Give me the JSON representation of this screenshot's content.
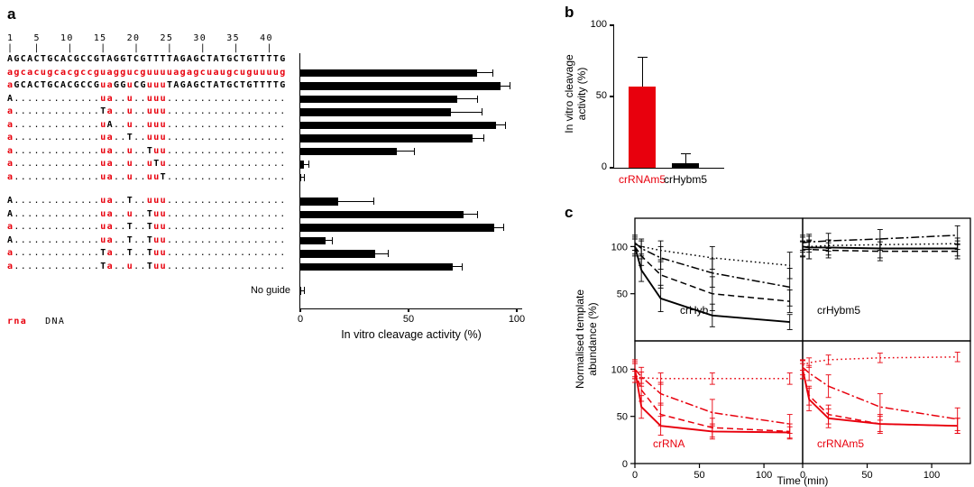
{
  "panel_labels": {
    "a": "a",
    "b": "b",
    "c": "c"
  },
  "colors": {
    "red": "#e8000d",
    "black": "#000000"
  },
  "chart_data": [
    {
      "panel": "a",
      "type": "bar",
      "orientation": "horizontal",
      "xlabel": "In vitro cleavage  activity (%)",
      "x_ticks": [
        0,
        50,
        100
      ],
      "xlim": [
        0,
        100
      ],
      "ruler_numbers": "1   5   10   15   20   25   30   35   40",
      "ruler_ticks": "|   |    |    |    |    |    |    |    |",
      "legend_rna": "rna",
      "legend_dna": "DNA",
      "no_guide_label": "No guide",
      "no_guide_bar": {
        "value": 1,
        "err": 1
      },
      "gap_before_rows": [
        10
      ],
      "rows": [
        {
          "segments": [
            [
              "AGCACTGCACGCCGTAGGTCGTTTTAGAGCTATGCTGTTTTG",
              "d"
            ]
          ],
          "bar": null
        },
        {
          "segments": [
            [
              "agcacugcacgccguaggucguuuuagagcuaugcuguuuug",
              "r"
            ]
          ],
          "bar": {
            "value": 82,
            "err": 7
          }
        },
        {
          "segments": [
            [
              "a",
              "r"
            ],
            [
              "GCACTGCACGCCG",
              "d"
            ],
            [
              "ua",
              "r"
            ],
            [
              "GG",
              "d"
            ],
            [
              "u",
              "r"
            ],
            [
              "CG",
              "d"
            ],
            [
              "uuu",
              "r"
            ],
            [
              "TAGAGCTATGCTGTTTTG",
              "d"
            ]
          ],
          "bar": {
            "value": 93,
            "err": 4
          }
        },
        {
          "segments": [
            [
              "A",
              "d"
            ],
            [
              ".............",
              "x"
            ],
            [
              "ua",
              "r"
            ],
            [
              "..",
              "x"
            ],
            [
              "u",
              "r"
            ],
            [
              "..",
              "x"
            ],
            [
              "uuu",
              "r"
            ],
            [
              "..................",
              "x"
            ]
          ],
          "bar": {
            "value": 73,
            "err": 9
          }
        },
        {
          "segments": [
            [
              "a",
              "r"
            ],
            [
              ".............",
              "x"
            ],
            [
              "T",
              "d"
            ],
            [
              "a",
              "r"
            ],
            [
              "..",
              "x"
            ],
            [
              "u",
              "r"
            ],
            [
              "..",
              "x"
            ],
            [
              "uuu",
              "r"
            ],
            [
              "..................",
              "x"
            ]
          ],
          "bar": {
            "value": 70,
            "err": 14
          }
        },
        {
          "segments": [
            [
              "a",
              "r"
            ],
            [
              ".............",
              "x"
            ],
            [
              "u",
              "r"
            ],
            [
              "A",
              "d"
            ],
            [
              "..",
              "x"
            ],
            [
              "u",
              "r"
            ],
            [
              "..",
              "x"
            ],
            [
              "uuu",
              "r"
            ],
            [
              "..................",
              "x"
            ]
          ],
          "bar": {
            "value": 91,
            "err": 4
          }
        },
        {
          "segments": [
            [
              "a",
              "r"
            ],
            [
              ".............",
              "x"
            ],
            [
              "ua",
              "r"
            ],
            [
              "..",
              "x"
            ],
            [
              "T",
              "d"
            ],
            [
              "..",
              "x"
            ],
            [
              "uuu",
              "r"
            ],
            [
              "..................",
              "x"
            ]
          ],
          "bar": {
            "value": 80,
            "err": 5
          }
        },
        {
          "segments": [
            [
              "a",
              "r"
            ],
            [
              ".............",
              "x"
            ],
            [
              "ua",
              "r"
            ],
            [
              "..",
              "x"
            ],
            [
              "u",
              "r"
            ],
            [
              "..",
              "x"
            ],
            [
              "T",
              "d"
            ],
            [
              "uu",
              "r"
            ],
            [
              "..................",
              "x"
            ]
          ],
          "bar": {
            "value": 45,
            "err": 8
          }
        },
        {
          "segments": [
            [
              "a",
              "r"
            ],
            [
              ".............",
              "x"
            ],
            [
              "ua",
              "r"
            ],
            [
              "..",
              "x"
            ],
            [
              "u",
              "r"
            ],
            [
              "..",
              "x"
            ],
            [
              "u",
              "r"
            ],
            [
              "T",
              "d"
            ],
            [
              "u",
              "r"
            ],
            [
              "..................",
              "x"
            ]
          ],
          "bar": {
            "value": 2,
            "err": 2
          }
        },
        {
          "segments": [
            [
              "a",
              "r"
            ],
            [
              ".............",
              "x"
            ],
            [
              "ua",
              "r"
            ],
            [
              "..",
              "x"
            ],
            [
              "u",
              "r"
            ],
            [
              "..",
              "x"
            ],
            [
              "uu",
              "r"
            ],
            [
              "T",
              "d"
            ],
            [
              "..................",
              "x"
            ]
          ],
          "bar": {
            "value": 1,
            "err": 1
          }
        },
        {
          "segments": [
            [
              "A",
              "d"
            ],
            [
              ".............",
              "x"
            ],
            [
              "ua",
              "r"
            ],
            [
              "..",
              "x"
            ],
            [
              "T",
              "d"
            ],
            [
              "..",
              "x"
            ],
            [
              "uuu",
              "r"
            ],
            [
              "..................",
              "x"
            ]
          ],
          "bar": {
            "value": 18,
            "err": 16
          }
        },
        {
          "segments": [
            [
              "A",
              "d"
            ],
            [
              ".............",
              "x"
            ],
            [
              "ua",
              "r"
            ],
            [
              "..",
              "x"
            ],
            [
              "u",
              "r"
            ],
            [
              "..",
              "x"
            ],
            [
              "T",
              "d"
            ],
            [
              "uu",
              "r"
            ],
            [
              "..................",
              "x"
            ]
          ],
          "bar": {
            "value": 76,
            "err": 6
          }
        },
        {
          "segments": [
            [
              "a",
              "r"
            ],
            [
              ".............",
              "x"
            ],
            [
              "ua",
              "r"
            ],
            [
              "..",
              "x"
            ],
            [
              "T",
              "d"
            ],
            [
              "..",
              "x"
            ],
            [
              "T",
              "d"
            ],
            [
              "uu",
              "r"
            ],
            [
              "..................",
              "x"
            ]
          ],
          "bar": {
            "value": 90,
            "err": 4
          }
        },
        {
          "segments": [
            [
              "A",
              "d"
            ],
            [
              ".............",
              "x"
            ],
            [
              "ua",
              "r"
            ],
            [
              "..",
              "x"
            ],
            [
              "T",
              "d"
            ],
            [
              "..",
              "x"
            ],
            [
              "T",
              "d"
            ],
            [
              "uu",
              "r"
            ],
            [
              "..................",
              "x"
            ]
          ],
          "bar": {
            "value": 12,
            "err": 3
          }
        },
        {
          "segments": [
            [
              "a",
              "r"
            ],
            [
              ".............",
              "x"
            ],
            [
              "T",
              "d"
            ],
            [
              "a",
              "r"
            ],
            [
              "..",
              "x"
            ],
            [
              "T",
              "d"
            ],
            [
              "..",
              "x"
            ],
            [
              "T",
              "d"
            ],
            [
              "uu",
              "r"
            ],
            [
              "..................",
              "x"
            ]
          ],
          "bar": {
            "value": 35,
            "err": 6
          }
        },
        {
          "segments": [
            [
              "a",
              "r"
            ],
            [
              ".............",
              "x"
            ],
            [
              "T",
              "d"
            ],
            [
              "a",
              "r"
            ],
            [
              "..",
              "x"
            ],
            [
              "u",
              "r"
            ],
            [
              "..",
              "x"
            ],
            [
              "T",
              "d"
            ],
            [
              "uu",
              "r"
            ],
            [
              "..................",
              "x"
            ]
          ],
          "bar": {
            "value": 71,
            "err": 4
          }
        }
      ]
    },
    {
      "panel": "b",
      "type": "bar",
      "ylabel": "In vitro cleavage activity (%)",
      "y_ticks": [
        0,
        50,
        100
      ],
      "ylim": [
        0,
        100
      ],
      "bars": [
        {
          "label": "crRNAm5",
          "value": 57,
          "err": 21,
          "color": "red"
        },
        {
          "label": "crHybm5",
          "value": 3,
          "err": 7,
          "color": "black"
        }
      ]
    },
    {
      "panel": "c",
      "type": "line",
      "ylabel": "Normalised template abundance (%)",
      "xlabel": "Time (min)",
      "x_ticks": [
        0,
        50,
        100
      ],
      "y_ticks": [
        0,
        50,
        100
      ],
      "xlim": [
        0,
        130
      ],
      "ylim": [
        0,
        130
      ],
      "time": [
        0,
        5,
        20,
        60,
        120
      ],
      "subplots": [
        {
          "name": "crHyb",
          "color": "black",
          "series": [
            {
              "style": "solid",
              "values": [
                100,
                75,
                45,
                27,
                20
              ],
              "err": [
                10,
                12,
                14,
                12,
                8
              ]
            },
            {
              "style": "dashed",
              "values": [
                100,
                90,
                70,
                50,
                42
              ],
              "err": [
                8,
                10,
                14,
                18,
                12
              ]
            },
            {
              "style": "dashdot",
              "values": [
                104,
                98,
                88,
                72,
                57
              ],
              "err": [
                8,
                8,
                12,
                15,
                20
              ]
            },
            {
              "style": "dotted",
              "values": [
                102,
                100,
                96,
                88,
                80
              ],
              "err": [
                6,
                8,
                10,
                12,
                14
              ]
            }
          ]
        },
        {
          "name": "crHybm5",
          "color": "black",
          "series": [
            {
              "style": "solid",
              "values": [
                100,
                99,
                99,
                98,
                98
              ],
              "err": [
                10,
                12,
                8,
                10,
                8
              ]
            },
            {
              "style": "dashed",
              "values": [
                97,
                97,
                96,
                95,
                95
              ],
              "err": [
                8,
                10,
                8,
                10,
                8
              ]
            },
            {
              "style": "dashdot",
              "values": [
                104,
                105,
                106,
                108,
                112
              ],
              "err": [
                8,
                8,
                8,
                10,
                10
              ]
            },
            {
              "style": "dotted",
              "values": [
                100,
                100,
                101,
                102,
                103
              ],
              "err": [
                6,
                6,
                6,
                6,
                6
              ]
            }
          ]
        },
        {
          "name": "crRNA",
          "color": "red",
          "series": [
            {
              "style": "solid",
              "values": [
                100,
                60,
                40,
                34,
                33
              ],
              "err": [
                10,
                12,
                10,
                8,
                6
              ]
            },
            {
              "style": "dashed",
              "values": [
                98,
                78,
                52,
                38,
                34
              ],
              "err": [
                8,
                12,
                12,
                10,
                8
              ]
            },
            {
              "style": "dashdot",
              "values": [
                100,
                92,
                74,
                54,
                42
              ],
              "err": [
                8,
                10,
                12,
                14,
                10
              ]
            },
            {
              "style": "dotted",
              "values": [
                92,
                91,
                90,
                90,
                90
              ],
              "err": [
                6,
                6,
                6,
                6,
                6
              ]
            }
          ]
        },
        {
          "name": "crRNAm5",
          "color": "red",
          "series": [
            {
              "style": "solid",
              "values": [
                100,
                68,
                48,
                42,
                40
              ],
              "err": [
                10,
                12,
                10,
                8,
                8
              ]
            },
            {
              "style": "dashed",
              "values": [
                98,
                72,
                52,
                42,
                40
              ],
              "err": [
                8,
                10,
                10,
                10,
                8
              ]
            },
            {
              "style": "dashdot",
              "values": [
                102,
                96,
                82,
                60,
                47
              ],
              "err": [
                8,
                8,
                12,
                14,
                12
              ]
            },
            {
              "style": "dotted",
              "values": [
                104,
                107,
                110,
                112,
                113
              ],
              "err": [
                5,
                5,
                5,
                5,
                5
              ]
            }
          ]
        }
      ]
    }
  ]
}
